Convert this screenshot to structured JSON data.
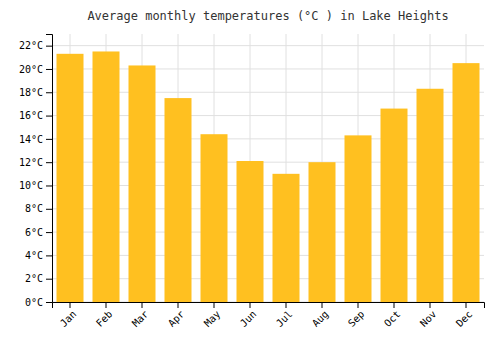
{
  "chart_data": {
    "type": "bar",
    "title": "Average monthly temperatures (°C ) in Lake Heights",
    "categories": [
      "Jan",
      "Feb",
      "Mar",
      "Apr",
      "May",
      "Jun",
      "Jul",
      "Aug",
      "Sep",
      "Oct",
      "Nov",
      "Dec"
    ],
    "values": [
      21.3,
      21.5,
      20.3,
      17.5,
      14.4,
      12.1,
      11.0,
      12.0,
      14.3,
      16.6,
      18.3,
      20.5
    ],
    "color": "#FFC020",
    "ylim": [
      0,
      23
    ],
    "yticks": [
      {
        "value": 0,
        "label": "0°C"
      },
      {
        "value": 2,
        "label": "2°C"
      },
      {
        "value": 4,
        "label": "4°C"
      },
      {
        "value": 6,
        "label": "6°C"
      },
      {
        "value": 8,
        "label": "8°C"
      },
      {
        "value": 10,
        "label": "10°C"
      },
      {
        "value": 12,
        "label": "12°C"
      },
      {
        "value": 14,
        "label": "14°C"
      },
      {
        "value": 16,
        "label": "16°C"
      },
      {
        "value": 18,
        "label": "18°C"
      },
      {
        "value": 20,
        "label": "20°C"
      },
      {
        "value": 22,
        "label": "22°C"
      }
    ],
    "grid": true
  }
}
